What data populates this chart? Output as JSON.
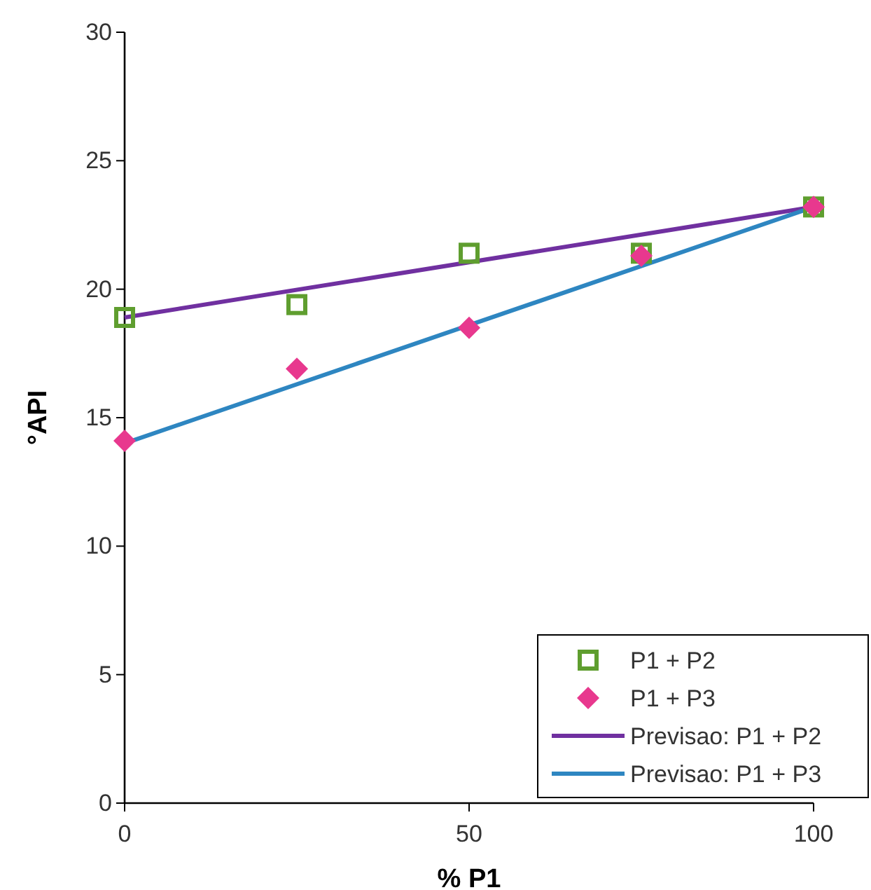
{
  "chart_data": {
    "type": "scatter",
    "xlabel": "% P1",
    "ylabel": "°API",
    "xlim": [
      0,
      100
    ],
    "xticks": [
      0,
      50,
      100
    ],
    "ylim": [
      0,
      30
    ],
    "yticks": [
      0,
      5,
      10,
      15,
      20,
      25,
      30
    ],
    "grid": false,
    "legend": "bottom right",
    "series": [
      {
        "name": "P1 + P2",
        "marker": "square",
        "color": "#5f9e2f",
        "x": [
          0,
          25,
          50,
          75,
          100
        ],
        "values": [
          18.9,
          19.4,
          21.4,
          21.4,
          23.2
        ]
      },
      {
        "name": "P1 + P3",
        "marker": "diamond",
        "color": "#e8388e",
        "x": [
          0,
          25,
          50,
          75,
          100
        ],
        "values": [
          14.1,
          16.9,
          18.5,
          21.3,
          23.2
        ]
      },
      {
        "name": "Previsao: P1 + P2",
        "type": "line",
        "marker": "none",
        "line_style": "solid",
        "color": "#7030a0",
        "x": [
          0,
          100
        ],
        "values": [
          18.9,
          23.2
        ]
      },
      {
        "name": "Previsao: P1 + P3",
        "type": "line",
        "marker": "none",
        "line_style": "solid",
        "color": "#2e86c1",
        "x": [
          0,
          100
        ],
        "values": [
          14.0,
          23.2
        ]
      }
    ]
  }
}
